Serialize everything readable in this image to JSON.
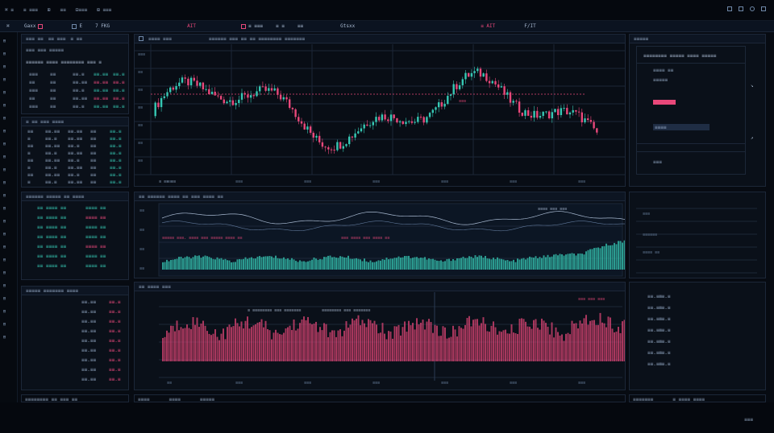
{
  "colors": {
    "up": "#36c8b4",
    "down": "#e9487a",
    "grid": "#1c2738",
    "panel": "#0a1019"
  },
  "topbar": {
    "left_items": [
      "⌘ ≡",
      "≡ ≡≡≡",
      "⊞",
      "≡≡",
      "⊟≡≡≡",
      "⊞ ≡≡≡"
    ],
    "right_icons": [
      "gear-icon",
      "user-icon",
      "search-icon",
      "menu-icon"
    ]
  },
  "tabs": [
    {
      "label": "Gaxx"
    },
    {
      "label": "E"
    },
    {
      "label": "7 FKG"
    },
    {
      "label": "AIT"
    },
    {
      "label": "≡ ≡≡≡"
    },
    {
      "label": "≡ ≡"
    },
    {
      "label": "≡≡"
    },
    {
      "label": "Gtsxx"
    },
    {
      "label": "≡ AIT"
    },
    {
      "label": "F/IT"
    }
  ],
  "watchlist": {
    "header": [
      "≡≡≡ ≡≡",
      "≡≡ ≡≡≡",
      "≡ ≡≡"
    ],
    "sub_header": "≡≡≡ ≡≡≡ ≡≡≡≡≡",
    "group_label": "≡≡≡≡≡≡ ≡≡≡≡ ≡≡≡≡≡≡≡≡ ≡≡≡ ≡",
    "rows": [
      [
        "≡≡≡",
        "≡≡",
        "≡≡.≡",
        "≡≡.≡≡",
        "≡≡.≡"
      ],
      [
        "≡≡",
        "≡≡",
        "≡≡.≡≡",
        "≡≡.≡≡",
        "≡≡.≡"
      ],
      [
        "≡≡≡",
        "≡≡",
        "≡≡.≡",
        "≡≡.≡≡",
        "≡≡.≡"
      ],
      [
        "≡≡",
        "≡≡",
        "≡≡.≡≡",
        "≡≡.≡≡",
        "≡≡.≡"
      ],
      [
        "≡≡≡",
        "≡≡",
        "≡≡.≡",
        "≡≡.≡≡",
        "≡≡.≡"
      ]
    ]
  },
  "book": {
    "header": "≡ ≡≡ ≡≡≡ ≡≡≡≡",
    "rows": [
      [
        "≡≡",
        "≡≡.≡≡",
        "≡≡.≡≡",
        "≡≡",
        "≡≡.≡"
      ],
      [
        "≡",
        "≡≡.≡",
        "≡≡.≡≡",
        "≡≡",
        "≡≡.≡"
      ],
      [
        "≡≡",
        "≡≡.≡≡",
        "≡≡.≡",
        "≡≡",
        "≡≡.≡"
      ],
      [
        "≡",
        "≡≡.≡",
        "≡≡.≡≡",
        "≡≡",
        "≡≡.≡"
      ],
      [
        "≡≡",
        "≡≡.≡≡",
        "≡≡.≡",
        "≡≡",
        "≡≡.≡"
      ],
      [
        "≡",
        "≡≡.≡",
        "≡≡.≡≡",
        "≡≡",
        "≡≡.≡"
      ],
      [
        "≡≡",
        "≡≡.≡≡",
        "≡≡.≡",
        "≡≡",
        "≡≡.≡"
      ],
      [
        "≡",
        "≡≡.≡",
        "≡≡.≡≡",
        "≡≡",
        "≡≡.≡"
      ]
    ]
  },
  "trades": {
    "header": "≡≡≡≡≡≡ ≡≡≡≡≡ ≡≡ ≡≡≡≡",
    "rows": [
      [
        "≡≡ ≡≡≡≡ ≡≡",
        "≡≡≡≡ ≡≡"
      ],
      [
        "≡≡ ≡≡≡≡ ≡≡",
        "≡≡≡≡ ≡≡"
      ],
      [
        "≡≡ ≡≡≡≡ ≡≡",
        "≡≡≡≡ ≡≡"
      ],
      [
        "≡≡ ≡≡≡≡ ≡≡",
        "≡≡≡≡ ≡≡"
      ],
      [
        "≡≡ ≡≡≡≡ ≡≡",
        "≡≡≡≡ ≡≡"
      ],
      [
        "≡≡ ≡≡≡≡ ≡≡",
        "≡≡≡≡ ≡≡"
      ],
      [
        "≡≡ ≡≡≡≡ ≡≡",
        "≡≡≡≡ ≡≡"
      ]
    ]
  },
  "orders": {
    "header": "≡≡≡≡≡ ≡≡≡≡≡≡≡ ≡≡≡≡",
    "rows": [
      [
        "≡≡.≡≡",
        "≡≡.≡"
      ],
      [
        "≡≡.≡≡",
        "≡≡.≡"
      ],
      [
        "≡≡.≡≡",
        "≡≡.≡"
      ],
      [
        "≡≡.≡≡",
        "≡≡.≡"
      ],
      [
        "≡≡.≡≡",
        "≡≡.≡"
      ],
      [
        "≡≡.≡≡",
        "≡≡.≡"
      ],
      [
        "≡≡.≡≡",
        "≡≡.≡"
      ],
      [
        "≡≡.≡≡",
        "≡≡.≡"
      ],
      [
        "≡≡.≡≡",
        "≡≡.≡"
      ]
    ],
    "footer": "≡≡≡≡≡ ≡≡≡≡≡≡ ≡≡ ≡≡"
  },
  "main_chart": {
    "header": [
      "≡≡≡≡ ≡≡≡",
      "≡≡≡≡≡≡ ≡≡≡ ≡≡ ≡≡ ≡≡≡≡≡≡≡≡ ≡≡≡≡≡≡≡"
    ],
    "price_label": "≡≡≡",
    "x_labels": [
      "≡≡",
      "≡≡≡",
      "≡≡≡",
      "≡≡≡",
      "≡≡≡",
      "≡≡≡",
      "≡≡≡"
    ],
    "y_labels": [
      "≡≡≡",
      "≡≡",
      "≡≡",
      "≡≡",
      "≡≡",
      "≡≡",
      "≡≡"
    ],
    "footer": "≡ ≡≡ ≡≡"
  },
  "indicator": {
    "header": "≡≡ ≡≡≡≡≡≡ ≡≡≡≡ ≡≡ ≡≡≡ ≡≡≡≡ ≡≡",
    "legend": "≡≡≡≡ ≡≡≡ ≡≡≡",
    "annotation_left": "≡≡≡≡≡ ≡≡≡. ≡≡≡≡ ≡≡≡ ≡≡≡≡≡ ≡≡≡≡ ≡≡",
    "annotation_right": "≡≡≡ ≡≡≡≡ ≡≡≡ ≡≡≡≡ ≡≡",
    "y_labels": [
      "≡≡",
      "≡≡",
      "≡≡",
      "≡≡"
    ]
  },
  "volume": {
    "header": "≡≡ ≡≡≡≡ ≡≡≡",
    "legend": [
      "≡ ≡≡≡≡≡≡≡≡ ≡≡≡ ≡≡≡≡≡≡≡",
      "≡≡≡≡≡≡≡≡ ≡≡≡ ≡≡≡≡≡≡≡"
    ],
    "value_tag": "≡≡≡ ≡≡≡ ≡≡≡",
    "x_labels": [
      "≡≡",
      "≡≡≡",
      "≡≡≡",
      "≡≡≡",
      "≡≡≡",
      "≡≡≡",
      "≡≡≡"
    ]
  },
  "depth": {
    "header": "≡≡≡≡≡",
    "title": "≡≡≡≡≡≡≡≡ ≡≡≡≡≡ ≡≡≡≡ ≡≡≡≡≡",
    "rows": [
      "≡≡≡≡ ≡≡",
      "≡≡≡≡≡",
      "≡≡≡≡",
      "≡≡≡",
      "≡≡≡≡≡≡"
    ]
  },
  "footer": {
    "left": "≡≡≡≡≡≡≡≡ ≡≡ ≡≡≡ ≡≡",
    "mid": [
      "≡≡≡≡",
      "≡≡≡≡",
      "≡≡≡≡≡"
    ],
    "right": [
      "≡≡≡≡≡≡≡",
      "≡ ≡≡≡≡ ≡≡≡≡"
    ],
    "watermark": "≡≡≡"
  }
}
